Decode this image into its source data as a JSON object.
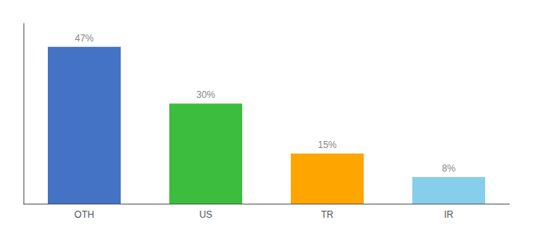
{
  "chart_data": {
    "type": "bar",
    "categories": [
      "OTH",
      "US",
      "TR",
      "IR"
    ],
    "values": [
      47,
      30,
      15,
      8
    ],
    "value_labels": [
      "47%",
      "30%",
      "15%",
      "8%"
    ],
    "colors": [
      "#4472C4",
      "#3DBD3D",
      "#FFA500",
      "#87CEEB"
    ],
    "ylim": [
      0,
      54
    ],
    "grid": false,
    "data_labels": true,
    "tick_labels": "x"
  }
}
